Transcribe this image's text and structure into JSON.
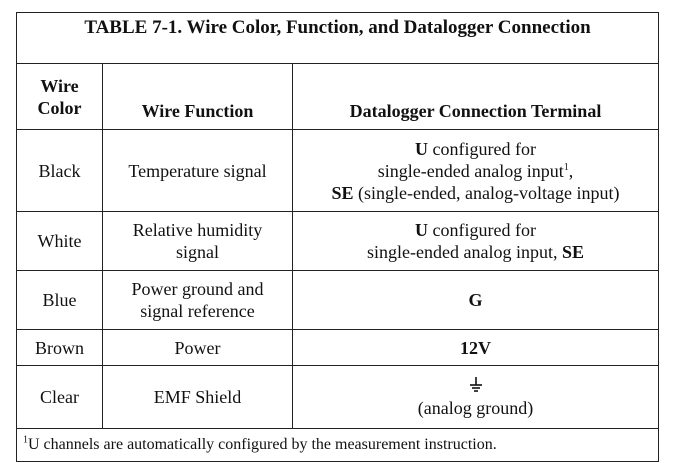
{
  "title": "TABLE 7-1.  Wire Color, Function, and Datalogger Connection",
  "headers": {
    "color_line1": "Wire",
    "color_line2": "Color",
    "function": "Wire Function",
    "terminal": "Datalogger Connection Terminal"
  },
  "rows": [
    {
      "color": "Black",
      "function": "Temperature signal",
      "t1_bold": "U",
      "t1_rest": " configured for",
      "t2": "single-ended analog input",
      "t2_sup": "1",
      "t2_end": ",",
      "t3_bold": "SE",
      "t3_rest": " (single-ended, analog-voltage input)"
    },
    {
      "color": "White",
      "function_line1": "Relative humidity",
      "function_line2": "signal",
      "t1_bold": "U",
      "t1_rest": " configured for",
      "t2": "single-ended analog input, ",
      "t2_bold": "SE"
    },
    {
      "color": "Blue",
      "function_line1": "Power ground and",
      "function_line2": "signal reference",
      "terminal_bold": "G"
    },
    {
      "color": "Brown",
      "function": "Power",
      "terminal_bold": "12V"
    },
    {
      "color": "Clear",
      "function": "EMF Shield",
      "terminal_icon": "ground-symbol-icon",
      "terminal": "(analog ground)"
    }
  ],
  "footnote": {
    "sup": "1",
    "text": "U channels are automatically configured by the measurement instruction."
  }
}
